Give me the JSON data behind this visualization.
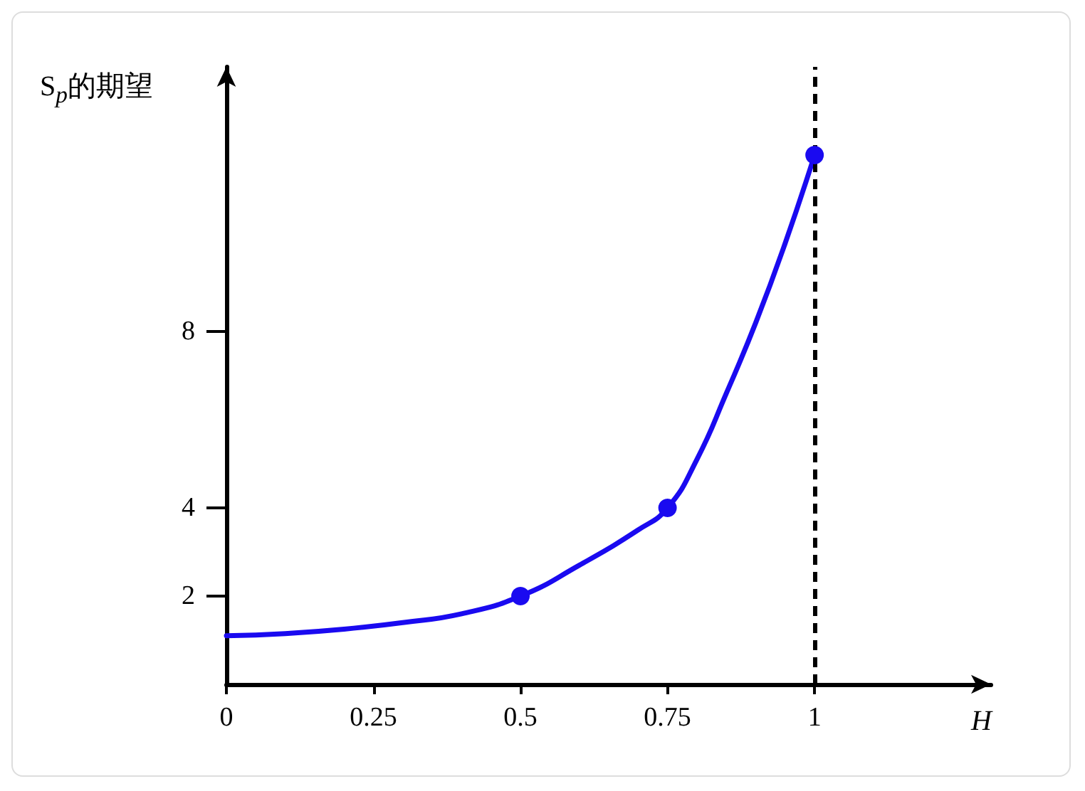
{
  "chart_data": {
    "type": "line",
    "xlabel": "H",
    "ylabel": "S$_{p}$的期望",
    "xlim": [
      0,
      1.3
    ],
    "xticks": [
      0,
      0.25,
      0.5,
      0.75,
      1
    ],
    "ylim": [
      0,
      14
    ],
    "yticks": [
      2,
      4,
      8
    ],
    "grid": false,
    "series": [
      {
        "color": "#1a0af0",
        "marker": "none",
        "x": [
          0,
          0.1,
          0.2,
          0.3,
          0.4,
          0.5,
          0.6,
          0.7,
          0.75,
          0.8,
          0.85,
          0.9,
          0.95,
          1
        ],
        "values": [
          1.1,
          1.15,
          1.25,
          1.4,
          1.6,
          2.0,
          2.7,
          3.5,
          4.0,
          5.1,
          6.6,
          8.2,
          10.0,
          12
        ]
      },
      {
        "type": "scatter",
        "color": "#1a0af0",
        "marker": "circle",
        "x": [
          0.5,
          0.75,
          1
        ],
        "values": [
          2,
          4,
          12
        ]
      }
    ],
    "ref_lines": [
      {
        "axis": "x",
        "value": 1,
        "color": "#000000",
        "line_style": "dashed"
      }
    ]
  }
}
